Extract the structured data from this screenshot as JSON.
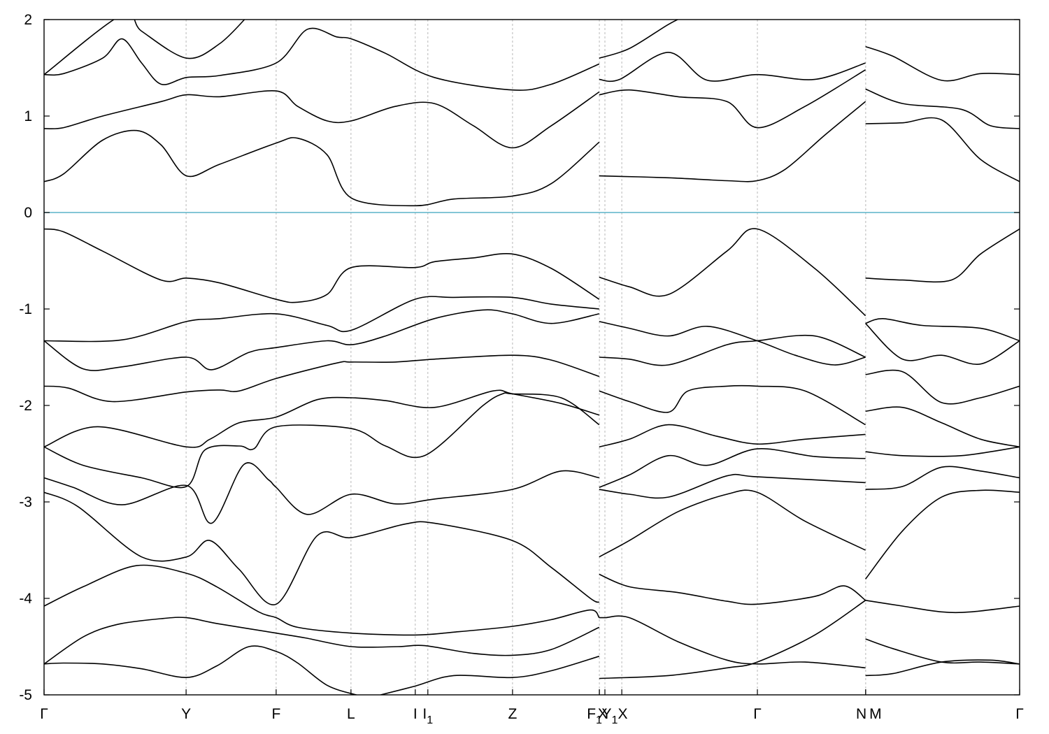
{
  "chart_data": {
    "type": "line",
    "title": "",
    "xlabel": "",
    "ylabel": "",
    "ylim": [
      -5,
      2
    ],
    "yticks": [
      "-5",
      "-4",
      "-3",
      "-2",
      "-1",
      "0",
      "1",
      "2"
    ],
    "grid": "vertical dashed lines at high-symmetry points",
    "xlim": [
      0,
      1.0
    ],
    "kpoints": [
      {
        "label": "Γ",
        "x": 0.0
      },
      {
        "label": "Y",
        "x": 0.1456
      },
      {
        "label": "F",
        "x": 0.2379
      },
      {
        "label": "L",
        "x": 0.3146
      },
      {
        "label": "I",
        "x": 0.3805
      },
      {
        "label": "I1",
        "x": 0.3934
      },
      {
        "label": "Z",
        "x": 0.4802
      },
      {
        "label": "F1",
        "x": 0.5692
      },
      {
        "label": "X",
        "x": 0.5692
      },
      {
        "label": "Y1",
        "x": 0.5749
      },
      {
        "label": "X",
        "x": 0.5922
      },
      {
        "label": "Γ",
        "x": 0.7312
      },
      {
        "label": "N",
        "x": 0.8422
      },
      {
        "label": "M",
        "x": 0.8422
      },
      {
        "label": "Γ",
        "x": 1.0
      }
    ],
    "xtick_labels": [
      {
        "main": "Γ",
        "sub": "",
        "x": 0.0
      },
      {
        "main": "Y",
        "sub": "",
        "x": 0.1456
      },
      {
        "main": "F",
        "sub": "",
        "x": 0.2379
      },
      {
        "main": "L",
        "sub": "",
        "x": 0.3146
      },
      {
        "main": "I",
        "sub": "",
        "x": 0.3805
      },
      {
        "main": "I",
        "sub": "1",
        "x": 0.3934
      },
      {
        "main": "Z",
        "sub": "",
        "x": 0.4802
      },
      {
        "main": "F",
        "sub": "1",
        "x": 0.5642
      },
      {
        "main": "X",
        "sub": "",
        "x": 0.5726
      },
      {
        "main": "Y",
        "sub": "1",
        "x": 0.5799
      },
      {
        "main": "X",
        "sub": "",
        "x": 0.5932
      },
      {
        "main": "Γ",
        "sub": "",
        "x": 0.7312
      },
      {
        "main": "N",
        "sub": "",
        "x": 0.8377
      },
      {
        "main": "M",
        "sub": "",
        "x": 0.8522
      },
      {
        "main": "Γ",
        "sub": "",
        "x": 1.0
      }
    ],
    "fermi_level": 0,
    "colors": {
      "bands": "#000000",
      "fermi": "#5ab4c8",
      "grid": "#b8b8b8"
    },
    "series": [
      {
        "x": [
          0,
          0.04,
          0.075,
          0.12,
          0.146,
          0.177,
          0.238,
          0.268,
          0.315,
          0.363,
          0.39,
          0.44,
          0.48,
          0.52,
          0.569
        ],
        "y": [
          -4.68,
          -4.4,
          -4.27,
          -4.21,
          -4.2,
          -4.26,
          -4.36,
          -4.41,
          -4.5,
          -4.5,
          -4.49,
          -4.57,
          -4.59,
          -4.53,
          -4.3
        ]
      },
      {
        "x": [
          0.569,
          0.575,
          0.6,
          0.65,
          0.7,
          0.731,
          0.78,
          0.842
        ],
        "y": [
          -4.2,
          -4.2,
          -4.2,
          -4.45,
          -4.64,
          -4.68,
          -4.66,
          -4.72
        ]
      },
      {
        "x": [
          0.842,
          0.87,
          0.92,
          0.97,
          1.0
        ],
        "y": [
          -4.8,
          -4.78,
          -4.66,
          -4.64,
          -4.68
        ]
      },
      {
        "x": [
          0,
          0.02,
          0.06,
          0.1,
          0.146,
          0.177,
          0.21,
          0.238,
          0.26,
          0.29,
          0.32,
          0.345
        ],
        "y": [
          -4.68,
          -4.67,
          -4.68,
          -4.73,
          -4.82,
          -4.7,
          -4.5,
          -4.55,
          -4.67,
          -4.9,
          -5.0,
          -5.05
        ]
      },
      {
        "x": [
          0.345,
          0.38,
          0.42,
          0.48,
          0.52,
          0.569
        ],
        "y": [
          -5.0,
          -4.91,
          -4.8,
          -4.82,
          -4.75,
          -4.6
        ]
      },
      {
        "x": [
          0.569,
          0.64,
          0.7,
          0.731,
          0.79,
          0.842
        ],
        "y": [
          -4.83,
          -4.8,
          -4.72,
          -4.66,
          -4.38,
          -4.02
        ]
      },
      {
        "x": [
          0.842,
          0.87,
          0.92,
          0.96,
          1.0
        ],
        "y": [
          -4.42,
          -4.52,
          -4.66,
          -4.66,
          -4.68
        ]
      },
      {
        "x": [
          0,
          0.04,
          0.095,
          0.146,
          0.177,
          0.22,
          0.238,
          0.26,
          0.315,
          0.38,
          0.42,
          0.48,
          0.52,
          0.56,
          0.569
        ],
        "y": [
          -4.08,
          -3.88,
          -3.66,
          -3.74,
          -3.88,
          -4.14,
          -4.2,
          -4.3,
          -4.36,
          -4.38,
          -4.35,
          -4.29,
          -4.22,
          -4.12,
          -4.2
        ]
      },
      {
        "x": [
          0.569,
          0.6,
          0.65,
          0.7,
          0.731,
          0.79,
          0.82,
          0.842
        ],
        "y": [
          -3.75,
          -3.88,
          -3.94,
          -4.03,
          -4.06,
          -3.98,
          -3.87,
          -4.02
        ]
      },
      {
        "x": [
          0.842,
          0.88,
          0.92,
          0.95,
          1.0
        ],
        "y": [
          -4.02,
          -4.08,
          -4.14,
          -4.14,
          -4.08
        ]
      },
      {
        "x": [
          0,
          0.035,
          0.1,
          0.146,
          0.17,
          0.2,
          0.238,
          0.28,
          0.315,
          0.37,
          0.4,
          0.48,
          0.52,
          0.56,
          0.569
        ],
        "y": [
          -2.9,
          -3.05,
          -3.57,
          -3.57,
          -3.4,
          -3.7,
          -4.06,
          -3.35,
          -3.37,
          -3.23,
          -3.22,
          -3.4,
          -3.68,
          -4.0,
          -4.04
        ]
      },
      {
        "x": [
          0.569,
          0.6,
          0.65,
          0.7,
          0.731,
          0.78,
          0.842
        ],
        "y": [
          -3.57,
          -3.4,
          -3.1,
          -2.92,
          -2.9,
          -3.2,
          -3.5
        ]
      },
      {
        "x": [
          0.842,
          0.88,
          0.92,
          0.96,
          1.0
        ],
        "y": [
          -3.8,
          -3.3,
          -2.95,
          -2.88,
          -2.9
        ]
      },
      {
        "x": [
          0,
          0.03,
          0.08,
          0.146,
          0.172,
          0.205,
          0.23,
          0.238,
          0.27,
          0.315,
          0.36,
          0.4,
          0.48,
          0.53,
          0.569
        ],
        "y": [
          -2.75,
          -2.85,
          -3.03,
          -2.83,
          -3.22,
          -2.61,
          -2.77,
          -2.85,
          -3.13,
          -2.92,
          -3.02,
          -2.97,
          -2.87,
          -2.68,
          -2.75
        ]
      },
      {
        "x": [
          0.569,
          0.6,
          0.64,
          0.7,
          0.731,
          0.842
        ],
        "y": [
          -2.87,
          -2.92,
          -2.95,
          -2.73,
          -2.74,
          -2.8
        ]
      },
      {
        "x": [
          0.842,
          0.88,
          0.92,
          0.96,
          1.0
        ],
        "y": [
          -2.87,
          -2.84,
          -2.64,
          -2.68,
          -2.75
        ]
      },
      {
        "x": [
          0,
          0.04,
          0.1,
          0.146,
          0.165,
          0.2,
          0.215,
          0.238,
          0.315,
          0.35,
          0.39,
          0.45,
          0.47,
          0.48,
          0.53,
          0.569
        ],
        "y": [
          -2.43,
          -2.62,
          -2.75,
          -2.84,
          -2.46,
          -2.42,
          -2.45,
          -2.22,
          -2.24,
          -2.42,
          -2.52,
          -2.0,
          -1.88,
          -1.88,
          -1.92,
          -2.2
        ]
      },
      {
        "x": [
          0.569,
          0.6,
          0.64,
          0.68,
          0.731,
          0.79,
          0.842
        ],
        "y": [
          -2.85,
          -2.72,
          -2.52,
          -2.62,
          -2.45,
          -2.53,
          -2.55
        ]
      },
      {
        "x": [
          0.842,
          0.88,
          0.94,
          1.0
        ],
        "y": [
          -2.48,
          -2.52,
          -2.52,
          -2.43
        ]
      },
      {
        "x": [
          0,
          0.055,
          0.146,
          0.17,
          0.2,
          0.238,
          0.28,
          0.315,
          0.35,
          0.4,
          0.46,
          0.48,
          0.53,
          0.569
        ],
        "y": [
          -2.43,
          -2.22,
          -2.43,
          -2.35,
          -2.18,
          -2.12,
          -1.94,
          -1.92,
          -1.95,
          -2.02,
          -1.85,
          -1.88,
          -1.98,
          -2.1
        ]
      },
      {
        "x": [
          0.569,
          0.6,
          0.64,
          0.69,
          0.731,
          0.78,
          0.842
        ],
        "y": [
          -2.43,
          -2.35,
          -2.2,
          -2.32,
          -2.4,
          -2.35,
          -2.3
        ]
      },
      {
        "x": [
          0.842,
          0.88,
          0.92,
          0.96,
          1.0
        ],
        "y": [
          -2.06,
          -2.02,
          -2.18,
          -2.35,
          -2.43
        ]
      },
      {
        "x": [
          0,
          0.025,
          0.07,
          0.146,
          0.18,
          0.2,
          0.238,
          0.3,
          0.315,
          0.36,
          0.4,
          0.48,
          0.52,
          0.569
        ],
        "y": [
          -1.8,
          -1.82,
          -1.96,
          -1.86,
          -1.84,
          -1.85,
          -1.72,
          -1.56,
          -1.55,
          -1.55,
          -1.52,
          -1.48,
          -1.53,
          -1.7
        ]
      },
      {
        "x": [
          0.569,
          0.6,
          0.64,
          0.66,
          0.7,
          0.731,
          0.78,
          0.842
        ],
        "y": [
          -1.85,
          -1.96,
          -2.07,
          -1.85,
          -1.8,
          -1.8,
          -1.85,
          -2.2
        ]
      },
      {
        "x": [
          0.842,
          0.88,
          0.92,
          0.96,
          1.0
        ],
        "y": [
          -1.68,
          -1.65,
          -1.97,
          -1.92,
          -1.8
        ]
      },
      {
        "x": [
          0,
          0.04,
          0.08,
          0.146,
          0.172,
          0.21,
          0.238,
          0.29,
          0.315,
          0.35,
          0.4,
          0.45,
          0.48,
          0.52,
          0.569
        ],
        "y": [
          -1.33,
          -1.62,
          -1.6,
          -1.5,
          -1.63,
          -1.45,
          -1.4,
          -1.33,
          -1.37,
          -1.28,
          -1.1,
          -1.01,
          -1.05,
          -1.15,
          -1.05
        ]
      },
      {
        "x": [
          0.569,
          0.6,
          0.64,
          0.68,
          0.731,
          0.77,
          0.81,
          0.842
        ],
        "y": [
          -1.13,
          -1.2,
          -1.28,
          -1.18,
          -1.33,
          -1.48,
          -1.58,
          -1.5
        ]
      },
      {
        "x": [
          0.842,
          0.88,
          0.92,
          0.96,
          1.0
        ],
        "y": [
          -1.15,
          -1.52,
          -1.48,
          -1.57,
          -1.33
        ]
      },
      {
        "x": [
          0,
          0.08,
          0.146,
          0.18,
          0.238,
          0.29,
          0.315,
          0.38,
          0.42,
          0.48,
          0.52,
          0.569
        ],
        "y": [
          -1.33,
          -1.32,
          -1.13,
          -1.1,
          -1.05,
          -1.17,
          -1.22,
          -0.9,
          -0.88,
          -0.88,
          -0.95,
          -1.0
        ]
      },
      {
        "x": [
          0.569,
          0.6,
          0.64,
          0.7,
          0.731,
          0.79,
          0.842
        ],
        "y": [
          -1.5,
          -1.52,
          -1.58,
          -1.37,
          -1.33,
          -1.28,
          -1.5
        ]
      },
      {
        "x": [
          0.842,
          0.86,
          0.9,
          0.96,
          1.0
        ],
        "y": [
          -1.15,
          -1.1,
          -1.17,
          -1.2,
          -1.33
        ]
      },
      {
        "x": [
          0,
          0.02,
          0.06,
          0.12,
          0.146,
          0.18,
          0.238,
          0.26,
          0.29,
          0.315,
          0.38,
          0.4,
          0.44,
          0.48,
          0.52,
          0.569
        ],
        "y": [
          -0.17,
          -0.2,
          -0.4,
          -0.7,
          -0.68,
          -0.73,
          -0.9,
          -0.93,
          -0.85,
          -0.57,
          -0.57,
          -0.51,
          -0.47,
          -0.43,
          -0.58,
          -0.9
        ]
      },
      {
        "x": [
          0.569,
          0.6,
          0.64,
          0.7,
          0.731,
          0.79,
          0.842
        ],
        "y": [
          -0.67,
          -0.77,
          -0.85,
          -0.4,
          -0.17,
          -0.58,
          -1.07
        ]
      },
      {
        "x": [
          0.842,
          0.88,
          0.93,
          0.96,
          1.0
        ],
        "y": [
          -0.68,
          -0.7,
          -0.7,
          -0.43,
          -0.17
        ]
      },
      {
        "x": [
          0,
          0.02,
          0.06,
          0.095,
          0.12,
          0.146,
          0.18,
          0.238,
          0.26,
          0.29,
          0.315,
          0.38,
          0.42,
          0.48,
          0.52,
          0.569
        ],
        "y": [
          0.32,
          0.4,
          0.75,
          0.85,
          0.7,
          0.38,
          0.5,
          0.72,
          0.77,
          0.6,
          0.15,
          0.07,
          0.14,
          0.17,
          0.3,
          0.73
        ]
      },
      {
        "x": [
          0.569,
          0.64,
          0.7,
          0.731,
          0.76,
          0.8,
          0.842
        ],
        "y": [
          0.38,
          0.36,
          0.33,
          0.33,
          0.45,
          0.8,
          1.15
        ]
      },
      {
        "x": [
          0.842,
          0.88,
          0.92,
          0.96,
          1.0
        ],
        "y": [
          0.92,
          0.93,
          0.96,
          0.55,
          0.32
        ]
      },
      {
        "x": [
          0,
          0.02,
          0.06,
          0.12,
          0.146,
          0.18,
          0.238,
          0.26,
          0.29,
          0.315,
          0.36,
          0.4,
          0.44,
          0.48,
          0.52,
          0.569
        ],
        "y": [
          0.87,
          0.88,
          1.0,
          1.15,
          1.22,
          1.2,
          1.26,
          1.1,
          0.95,
          0.95,
          1.1,
          1.13,
          0.9,
          0.67,
          0.9,
          1.25
        ]
      },
      {
        "x": [
          0.569,
          0.6,
          0.65,
          0.7,
          0.731,
          0.78,
          0.842
        ],
        "y": [
          1.22,
          1.27,
          1.2,
          1.15,
          0.88,
          1.1,
          1.48
        ]
      },
      {
        "x": [
          0.842,
          0.88,
          0.94,
          0.97,
          1.0
        ],
        "y": [
          1.28,
          1.13,
          1.07,
          0.9,
          0.87
        ]
      },
      {
        "x": [
          0,
          0.02,
          0.06,
          0.08,
          0.1,
          0.12,
          0.146,
          0.18,
          0.238,
          0.27,
          0.3,
          0.315,
          0.35,
          0.4,
          0.48,
          0.52,
          0.569
        ],
        "y": [
          1.43,
          1.44,
          1.6,
          1.8,
          1.55,
          1.33,
          1.4,
          1.42,
          1.55,
          1.9,
          1.82,
          1.8,
          1.65,
          1.4,
          1.27,
          1.33,
          1.54
        ]
      },
      {
        "x": [
          0.569,
          0.59,
          0.64,
          0.68,
          0.731,
          0.79,
          0.842
        ],
        "y": [
          1.38,
          1.38,
          1.66,
          1.37,
          1.43,
          1.38,
          1.55
        ]
      },
      {
        "x": [
          0.842,
          0.87,
          0.92,
          0.96,
          1.0
        ],
        "y": [
          1.72,
          1.62,
          1.37,
          1.44,
          1.43
        ]
      },
      {
        "x": [
          0,
          0.08,
          0.1,
          0.146,
          0.18,
          0.21
        ],
        "y": [
          1.43,
          2.05,
          1.88,
          1.6,
          1.75,
          2.05
        ]
      },
      {
        "x": [
          0.569,
          0.6,
          0.64,
          0.66
        ],
        "y": [
          1.6,
          1.7,
          1.95,
          2.05
        ]
      }
    ]
  }
}
